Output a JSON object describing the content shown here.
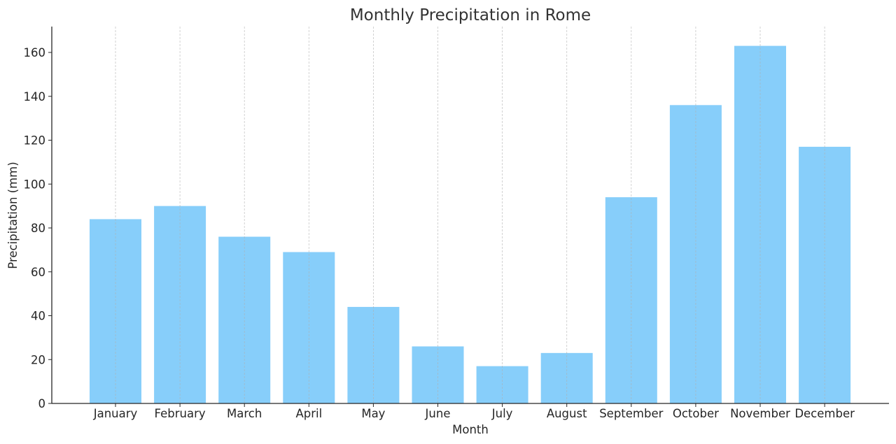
{
  "chart_data": {
    "type": "bar",
    "title": "Monthly Precipitation in Rome",
    "xlabel": "Month",
    "ylabel": "Precipitation (mm)",
    "categories": [
      "January",
      "February",
      "March",
      "April",
      "May",
      "June",
      "July",
      "August",
      "September",
      "October",
      "November",
      "December"
    ],
    "values": [
      84,
      90,
      76,
      69,
      44,
      26,
      17,
      23,
      94,
      136,
      163,
      117
    ],
    "ylim": [
      0,
      172
    ],
    "yticks": [
      0,
      20,
      40,
      60,
      80,
      100,
      120,
      140,
      160
    ],
    "grid": {
      "x": true,
      "y": false,
      "style": "dashed"
    },
    "bar_color": "#87CEFA",
    "legend": null
  }
}
